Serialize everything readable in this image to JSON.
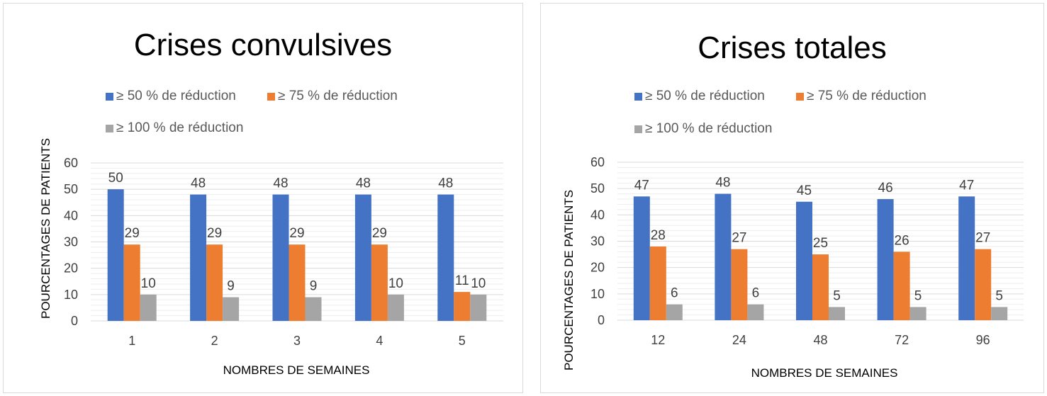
{
  "colors": {
    "series_50": "#4472C4",
    "series_75": "#ED7D31",
    "series_100": "#A5A5A5",
    "gridline": "#d9d9d9",
    "label": "#404040"
  },
  "chart_data": [
    {
      "type": "bar",
      "title": "Crises convulsives",
      "xlabel": "NOMBRES DE SEMAINES",
      "ylabel": "POURCENTAGES DE PATIENTS",
      "categories": [
        "1",
        "2",
        "3",
        "4",
        "5"
      ],
      "ylim": [
        0,
        60
      ],
      "yticks": [
        0,
        10,
        20,
        30,
        40,
        50,
        60
      ],
      "grid": true,
      "legend_position": "top",
      "series": [
        {
          "name": "≥ 50 %  de réduction",
          "values": [
            50,
            48,
            48,
            48,
            48
          ]
        },
        {
          "name": "≥ 75 % de réduction",
          "values": [
            29,
            29,
            29,
            29,
            11
          ]
        },
        {
          "name": "≥ 100 % de réduction",
          "values": [
            10,
            9,
            9,
            10,
            10
          ]
        }
      ]
    },
    {
      "type": "bar",
      "title": "Crises totales",
      "xlabel": "NOMBRES DE SEMAINES",
      "ylabel": "POURCENTAGES DE PATIENTS",
      "categories": [
        "12",
        "24",
        "48",
        "72",
        "96"
      ],
      "ylim": [
        0,
        60
      ],
      "yticks": [
        0,
        10,
        20,
        30,
        40,
        50,
        60
      ],
      "grid": true,
      "legend_position": "top",
      "series": [
        {
          "name": "≥ 50 %  de réduction",
          "values": [
            47,
            48,
            45,
            46,
            47
          ]
        },
        {
          "name": "≥ 75 % de réduction",
          "values": [
            28,
            27,
            25,
            26,
            27
          ]
        },
        {
          "name": "≥ 100 % de réduction",
          "values": [
            6,
            6,
            5,
            5,
            5
          ]
        }
      ]
    }
  ]
}
